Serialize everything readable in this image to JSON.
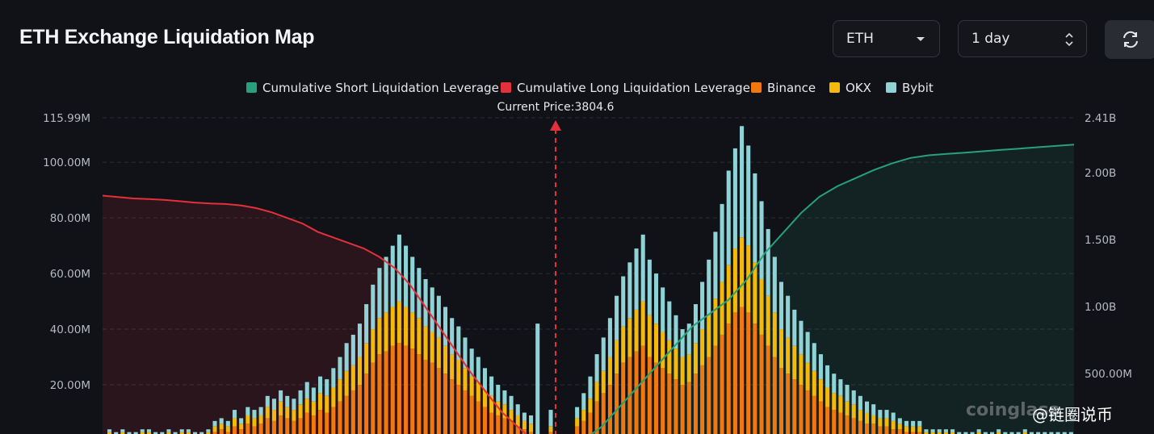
{
  "title": "ETH Exchange Liquidation Map",
  "controls": {
    "asset": "ETH",
    "period": "1 day"
  },
  "icons": {
    "asset_caret": "caret-down-icon",
    "period_stepper": "up-down-chevron-icon",
    "refresh": "refresh-icon"
  },
  "watermark": {
    "logo_text": "coinglass",
    "handle": "@链圈说币"
  },
  "chart_data": {
    "type": "bar",
    "title": "",
    "legend": {
      "placement": "top-center",
      "items": [
        {
          "name": "Cumulative Short Liquidation Leverage",
          "color": "#26a17b"
        },
        {
          "name": "Cumulative Long Liquidation Leverage",
          "color": "#e2313b"
        },
        {
          "name": "Binance",
          "color": "#f0780f"
        },
        {
          "name": "OKX",
          "color": "#f3b90b"
        },
        {
          "name": "Bybit",
          "color": "#8fd3d6"
        }
      ]
    },
    "current_price": {
      "label": "Current Price:3804.6",
      "value": 3804.6,
      "color": "#e2313b"
    },
    "left_axis": {
      "ticks": [
        "115.99M",
        "100.00M",
        "80.00M",
        "60.00M",
        "40.00M",
        "20.00M"
      ],
      "min": 0,
      "max": 115.99
    },
    "right_axis": {
      "ticks": [
        "2.41B",
        "2.00B",
        "1.50B",
        "1.00B",
        "500.00M"
      ],
      "min": 0,
      "max": 2.41
    },
    "grid": true,
    "bars": {
      "binance": [
        2,
        1,
        2,
        1,
        1,
        2,
        2,
        1,
        1,
        2,
        1,
        2,
        2,
        1,
        1,
        2,
        3,
        4,
        3,
        5,
        4,
        6,
        5,
        6,
        8,
        7,
        9,
        8,
        7,
        8,
        10,
        9,
        11,
        10,
        12,
        14,
        16,
        18,
        20,
        24,
        28,
        31,
        32,
        34,
        35,
        34,
        33,
        31,
        29,
        28,
        26,
        24,
        22,
        20,
        18,
        16,
        14,
        12,
        10,
        9,
        8,
        7,
        5,
        4,
        3,
        0,
        0,
        3,
        0,
        0,
        0,
        5,
        7,
        10,
        14,
        17,
        20,
        24,
        28,
        30,
        32,
        34,
        30,
        28,
        26,
        24,
        22,
        20,
        21,
        24,
        27,
        30,
        34,
        38,
        42,
        46,
        48,
        46,
        42,
        38,
        34,
        30,
        26,
        24,
        22,
        20,
        18,
        16,
        14,
        12,
        11,
        10,
        9,
        8,
        7,
        6,
        6,
        5,
        5,
        4,
        4,
        3,
        3,
        3,
        2,
        2,
        2,
        2,
        2,
        1,
        1,
        1,
        2,
        1,
        1,
        2,
        1,
        1,
        1,
        2,
        1,
        1,
        1,
        1,
        1,
        1,
        1
      ],
      "okx": [
        1,
        1,
        1,
        1,
        1,
        1,
        1,
        1,
        1,
        1,
        1,
        1,
        1,
        1,
        1,
        1,
        2,
        2,
        2,
        3,
        2,
        3,
        3,
        3,
        4,
        4,
        5,
        4,
        4,
        5,
        5,
        5,
        6,
        6,
        7,
        8,
        9,
        9,
        10,
        11,
        12,
        13,
        14,
        14,
        15,
        14,
        13,
        13,
        12,
        11,
        11,
        10,
        9,
        9,
        8,
        7,
        7,
        6,
        6,
        5,
        5,
        4,
        4,
        3,
        3,
        0,
        0,
        2,
        0,
        0,
        0,
        3,
        4,
        5,
        7,
        8,
        10,
        12,
        13,
        14,
        15,
        16,
        15,
        14,
        13,
        12,
        11,
        10,
        10,
        11,
        13,
        15,
        17,
        19,
        21,
        23,
        25,
        24,
        22,
        20,
        18,
        16,
        14,
        13,
        12,
        11,
        10,
        9,
        8,
        7,
        6,
        6,
        5,
        5,
        4,
        4,
        3,
        3,
        3,
        3,
        2,
        2,
        2,
        2,
        1,
        1,
        1,
        1,
        1,
        1,
        1,
        1,
        1,
        1,
        1,
        1,
        1,
        1,
        1,
        1,
        1,
        1,
        1,
        1,
        1,
        1,
        1
      ],
      "bybit": [
        1,
        1,
        1,
        1,
        1,
        1,
        1,
        1,
        1,
        1,
        1,
        1,
        1,
        1,
        1,
        1,
        2,
        2,
        2,
        3,
        2,
        3,
        3,
        3,
        4,
        4,
        4,
        4,
        4,
        5,
        6,
        5,
        6,
        6,
        7,
        8,
        10,
        11,
        12,
        14,
        16,
        18,
        20,
        22,
        24,
        22,
        20,
        18,
        17,
        16,
        15,
        14,
        13,
        12,
        11,
        10,
        9,
        8,
        7,
        6,
        5,
        5,
        4,
        3,
        3,
        42,
        0,
        6,
        0,
        0,
        0,
        4,
        6,
        8,
        10,
        12,
        14,
        16,
        18,
        20,
        22,
        24,
        20,
        18,
        16,
        14,
        12,
        10,
        11,
        14,
        17,
        20,
        24,
        28,
        34,
        36,
        40,
        36,
        32,
        28,
        24,
        20,
        17,
        15,
        13,
        12,
        11,
        10,
        9,
        8,
        7,
        6,
        6,
        5,
        5,
        4,
        4,
        3,
        3,
        3,
        2,
        2,
        2,
        2,
        1,
        1,
        1,
        1,
        1,
        1,
        1,
        1,
        1,
        1,
        1,
        1,
        1,
        1,
        1,
        1,
        1,
        1,
        1,
        1,
        1,
        1,
        1
      ]
    },
    "cumulative_long": [
      88,
      87.5,
      87,
      86.8,
      86.5,
      86,
      85.5,
      85.2,
      85,
      84.5,
      83.5,
      82,
      80,
      78,
      75,
      73,
      71,
      69,
      66,
      62,
      56,
      48,
      40,
      32,
      24,
      17,
      10,
      5,
      0
    ],
    "cumulative_short": [
      0,
      0.1,
      0.25,
      0.4,
      0.55,
      0.7,
      0.85,
      0.95,
      1.05,
      1.2,
      1.4,
      1.55,
      1.7,
      1.82,
      1.9,
      1.96,
      2.02,
      2.07,
      2.11,
      2.13,
      2.14,
      2.15,
      2.16,
      2.17,
      2.18,
      2.19,
      2.2,
      2.21
    ]
  }
}
